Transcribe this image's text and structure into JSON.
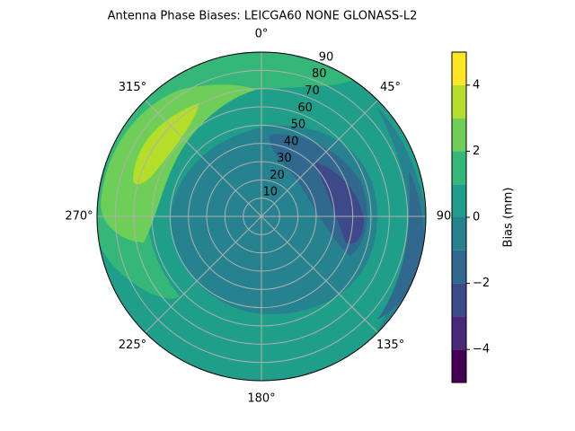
{
  "chart_data": {
    "type": "polar-contour",
    "title": "Antenna Phase Biases: LEICGA60        NONE GLONASS-L2",
    "theta_ticks": [
      {
        "value": 0,
        "label": "0°"
      },
      {
        "value": 45,
        "label": "45°"
      },
      90,
      {
        "value": 135,
        "label": "135°"
      },
      {
        "value": 180,
        "label": "180°"
      },
      {
        "value": 225,
        "label": "225°"
      },
      {
        "value": 270,
        "label": "270°"
      },
      {
        "value": 315,
        "label": "315°"
      }
    ],
    "rlim": [
      0,
      90
    ],
    "rticks": [
      10,
      20,
      30,
      40,
      50,
      60,
      70,
      80,
      90
    ],
    "grid": true,
    "levels": [
      -5,
      -4,
      -3,
      -2,
      -1,
      0,
      1,
      2,
      3,
      4,
      5
    ],
    "colors": [
      "#440154",
      "#482878",
      "#3e4989",
      "#31688e",
      "#26828e",
      "#1f9e89",
      "#35b779",
      "#6ece58",
      "#b5de2b",
      "#fde725"
    ],
    "colorbar_label": "Bias (mm)",
    "colorbar_ticks": [
      {
        "value": -4,
        "label": "−4"
      },
      {
        "value": -2,
        "label": "−2"
      },
      0,
      2,
      4
    ]
  }
}
